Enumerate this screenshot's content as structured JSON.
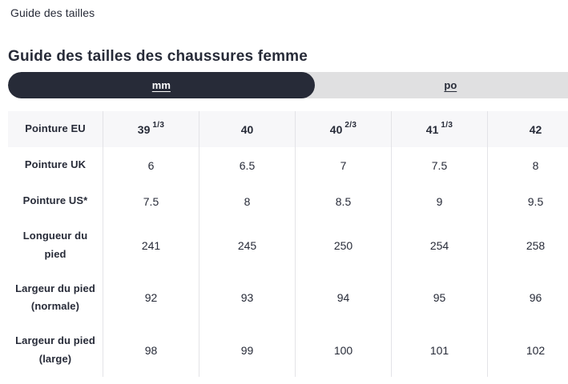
{
  "breadcrumb": {
    "label": "Guide des tailles"
  },
  "page": {
    "title": "Guide des tailles des chaussures femme"
  },
  "unit_toggle": {
    "options": [
      {
        "label": "mm",
        "selected": true
      },
      {
        "label": "po",
        "selected": false
      }
    ]
  },
  "table": {
    "rows": [
      {
        "label": "Pointure EU",
        "header": true,
        "cells": [
          {
            "base": "39",
            "frac": "1/3"
          },
          {
            "base": "40",
            "frac": ""
          },
          {
            "base": "40",
            "frac": "2/3"
          },
          {
            "base": "41",
            "frac": "1/3"
          },
          {
            "base": "42",
            "frac": ""
          }
        ]
      },
      {
        "label": "Pointure UK",
        "header": false,
        "cells": [
          {
            "base": "6"
          },
          {
            "base": "6.5"
          },
          {
            "base": "7"
          },
          {
            "base": "7.5"
          },
          {
            "base": "8"
          }
        ]
      },
      {
        "label": "Pointure US*",
        "header": false,
        "cells": [
          {
            "base": "7.5"
          },
          {
            "base": "8"
          },
          {
            "base": "8.5"
          },
          {
            "base": "9"
          },
          {
            "base": "9.5"
          }
        ]
      },
      {
        "label": "Longueur du pied",
        "header": false,
        "cells": [
          {
            "base": "241"
          },
          {
            "base": "245"
          },
          {
            "base": "250"
          },
          {
            "base": "254"
          },
          {
            "base": "258"
          }
        ]
      },
      {
        "label": "Largeur du pied (normale)",
        "header": false,
        "cells": [
          {
            "base": "92"
          },
          {
            "base": "93"
          },
          {
            "base": "94"
          },
          {
            "base": "95"
          },
          {
            "base": "96"
          }
        ]
      },
      {
        "label": "Largeur du pied (large)",
        "header": false,
        "cells": [
          {
            "base": "98"
          },
          {
            "base": "99"
          },
          {
            "base": "100"
          },
          {
            "base": "101"
          },
          {
            "base": "102"
          }
        ]
      }
    ]
  },
  "colors": {
    "text_dark": "#272b38",
    "toggle_track": "#e0e0e1",
    "toggle_selected_bg": "#272b38",
    "toggle_selected_text": "#ffffff",
    "header_row_bg": "#f7f7f9",
    "divider": "#e3e3e7",
    "page_bg": "#ffffff"
  }
}
